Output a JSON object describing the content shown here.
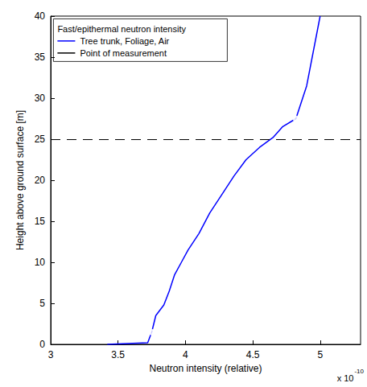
{
  "chart_data": {
    "type": "line",
    "xlabel": "Neutron intensity (relative)",
    "ylabel": "Height above ground surface [m]",
    "x_multiplier": {
      "text": "x 10",
      "exponent": "-10"
    },
    "legend_title": "Fast/epithermal neutron intensity",
    "legend": "upper left",
    "grid": false,
    "xlim": [
      3,
      5.3
    ],
    "xticks": [
      3,
      3.5,
      4,
      4.5,
      5
    ],
    "ylim": [
      0,
      40
    ],
    "yticks": [
      0,
      5,
      10,
      15,
      20,
      25,
      30,
      35,
      40
    ],
    "hlines": [
      {
        "y": 25,
        "color": "#000000",
        "line_style": "dashed"
      }
    ],
    "series": [
      {
        "name": "Tree trunk, Foliage, Air",
        "type": "line",
        "color": "#0000ff",
        "line_style": "solid",
        "marker": "none",
        "x": [
          3.42,
          3.72,
          3.75,
          3.78,
          3.84,
          3.88,
          3.92,
          3.97,
          4.02,
          4.1,
          4.18,
          4.28,
          4.36,
          4.45,
          4.55,
          4.65,
          4.72,
          4.82,
          4.9,
          5.0
        ],
        "values": [
          0,
          0.2,
          1.5,
          3.5,
          4.8,
          6.5,
          8.5,
          10,
          11.5,
          13.5,
          16,
          18.5,
          20.5,
          22.5,
          24,
          25.2,
          26.5,
          27.5,
          31.5,
          40
        ]
      },
      {
        "name": "Point of measurement",
        "type": "scatter",
        "color": "#000000",
        "marker": "circle",
        "x": [
          3.75,
          4.82
        ],
        "values": [
          1.5,
          27.5
        ]
      }
    ]
  }
}
